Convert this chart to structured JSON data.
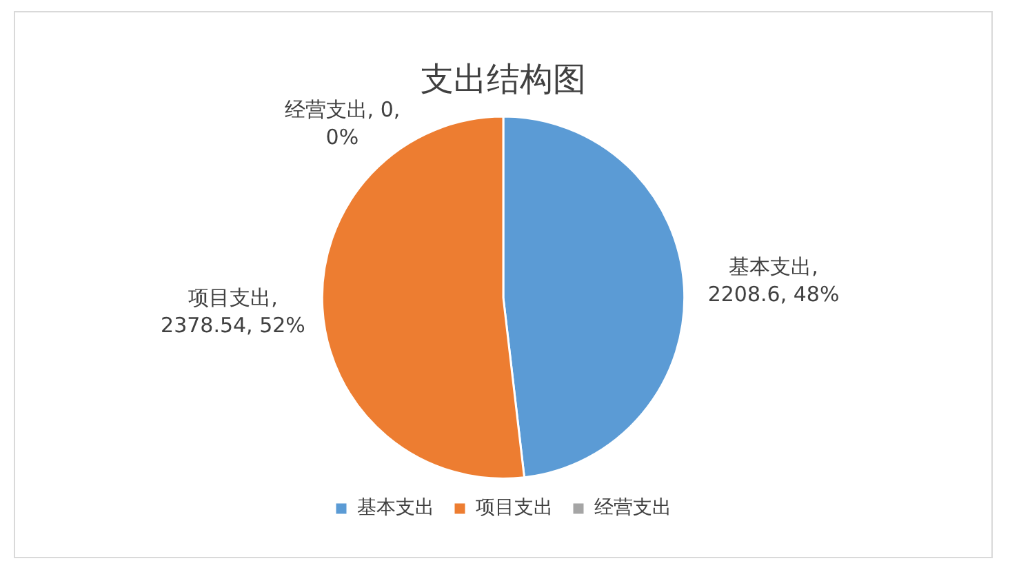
{
  "chart_data": {
    "type": "pie",
    "title": "支出结构图",
    "categories": [
      "基本支出",
      "项目支出",
      "经营支出"
    ],
    "values": [
      2208.6,
      2378.54,
      0
    ],
    "colors": [
      "#5b9bd5",
      "#ed7d31",
      "#a5a5a5"
    ],
    "value_labels": [
      "基本支出, 2208.6, 48%",
      "项目支出, 2378.54, 52%",
      "经营支出, 0, 0%"
    ],
    "legend": "bottom"
  }
}
